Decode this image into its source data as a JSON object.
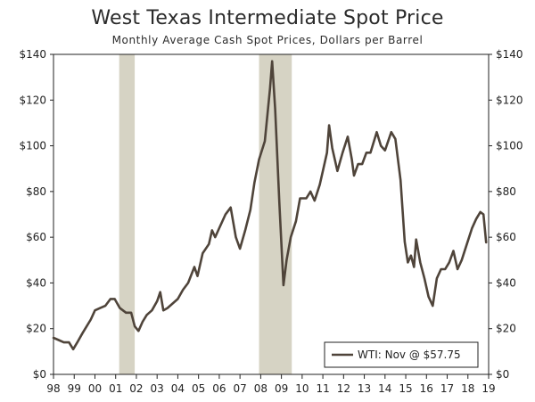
{
  "chart_data": {
    "type": "line",
    "title": "West Texas Intermediate Spot Price",
    "subtitle": "Monthly Average Cash Spot Prices, Dollars per Barrel",
    "xlabel": "",
    "ylabel": "",
    "x_range": [
      1998,
      2019
    ],
    "ylim": [
      0,
      140
    ],
    "y_ticks": [
      0,
      20,
      40,
      60,
      80,
      100,
      120,
      140
    ],
    "y_tick_labels": [
      "$0",
      "$20",
      "$40",
      "$60",
      "$80",
      "$100",
      "$120",
      "$140"
    ],
    "x_ticks": [
      1998,
      1999,
      2000,
      2001,
      2002,
      2003,
      2004,
      2005,
      2006,
      2007,
      2008,
      2009,
      2010,
      2011,
      2012,
      2013,
      2014,
      2015,
      2016,
      2017,
      2018,
      2019
    ],
    "x_tick_labels": [
      "98",
      "99",
      "00",
      "01",
      "02",
      "03",
      "04",
      "05",
      "06",
      "07",
      "08",
      "09",
      "10",
      "11",
      "12",
      "13",
      "14",
      "15",
      "16",
      "17",
      "18",
      "19"
    ],
    "grid": false,
    "legend_position": "bottom-right",
    "legend_label": "WTI: Nov @ $57.75",
    "line_color": "#4f443a",
    "recession_color": "#d6d3c4",
    "recessions": [
      {
        "start": 2001.17,
        "end": 2001.92
      },
      {
        "start": 2007.92,
        "end": 2009.5
      }
    ],
    "series": [
      {
        "name": "WTI",
        "x": [
          1998.0,
          1998.25,
          1998.5,
          1998.75,
          1998.95,
          1999.15,
          1999.4,
          1999.6,
          1999.8,
          2000.0,
          2000.25,
          2000.5,
          2000.75,
          2000.95,
          2001.2,
          2001.5,
          2001.75,
          2001.92,
          2002.1,
          2002.3,
          2002.5,
          2002.75,
          2003.0,
          2003.15,
          2003.3,
          2003.5,
          2003.75,
          2004.0,
          2004.25,
          2004.5,
          2004.8,
          2004.95,
          2005.2,
          2005.5,
          2005.65,
          2005.8,
          2006.0,
          2006.3,
          2006.55,
          2006.8,
          2007.0,
          2007.25,
          2007.5,
          2007.7,
          2007.92,
          2008.2,
          2008.45,
          2008.55,
          2008.7,
          2008.9,
          2009.1,
          2009.25,
          2009.45,
          2009.7,
          2009.9,
          2010.2,
          2010.4,
          2010.6,
          2010.85,
          2011.0,
          2011.2,
          2011.3,
          2011.45,
          2011.7,
          2011.95,
          2012.2,
          2012.4,
          2012.5,
          2012.7,
          2012.9,
          2013.1,
          2013.3,
          2013.6,
          2013.8,
          2014.0,
          2014.3,
          2014.5,
          2014.75,
          2014.95,
          2015.1,
          2015.25,
          2015.4,
          2015.5,
          2015.7,
          2015.9,
          2016.1,
          2016.3,
          2016.5,
          2016.7,
          2016.9,
          2017.1,
          2017.3,
          2017.5,
          2017.7,
          2017.95,
          2018.2,
          2018.4,
          2018.6,
          2018.75,
          2018.88
        ],
        "values": [
          16,
          15,
          14,
          14,
          11,
          14,
          18,
          21,
          24,
          28,
          29,
          30,
          33,
          33,
          29,
          27,
          27,
          21,
          19,
          23,
          26,
          28,
          32,
          36,
          28,
          29,
          31,
          33,
          37,
          40,
          47,
          43,
          53,
          57,
          63,
          60,
          64,
          70,
          73,
          60,
          55,
          63,
          72,
          84,
          94,
          102,
          125,
          137,
          116,
          75,
          39,
          50,
          60,
          67,
          77,
          77,
          80,
          76,
          83,
          89,
          97,
          109,
          99,
          89,
          97,
          104,
          94,
          87,
          92,
          92,
          97,
          97,
          106,
          100,
          98,
          106,
          103,
          85,
          58,
          49,
          52,
          47,
          59,
          49,
          42,
          34,
          30,
          42,
          46,
          46,
          49,
          54,
          46,
          50,
          57,
          64,
          68,
          71,
          70,
          57.75
        ]
      }
    ]
  }
}
